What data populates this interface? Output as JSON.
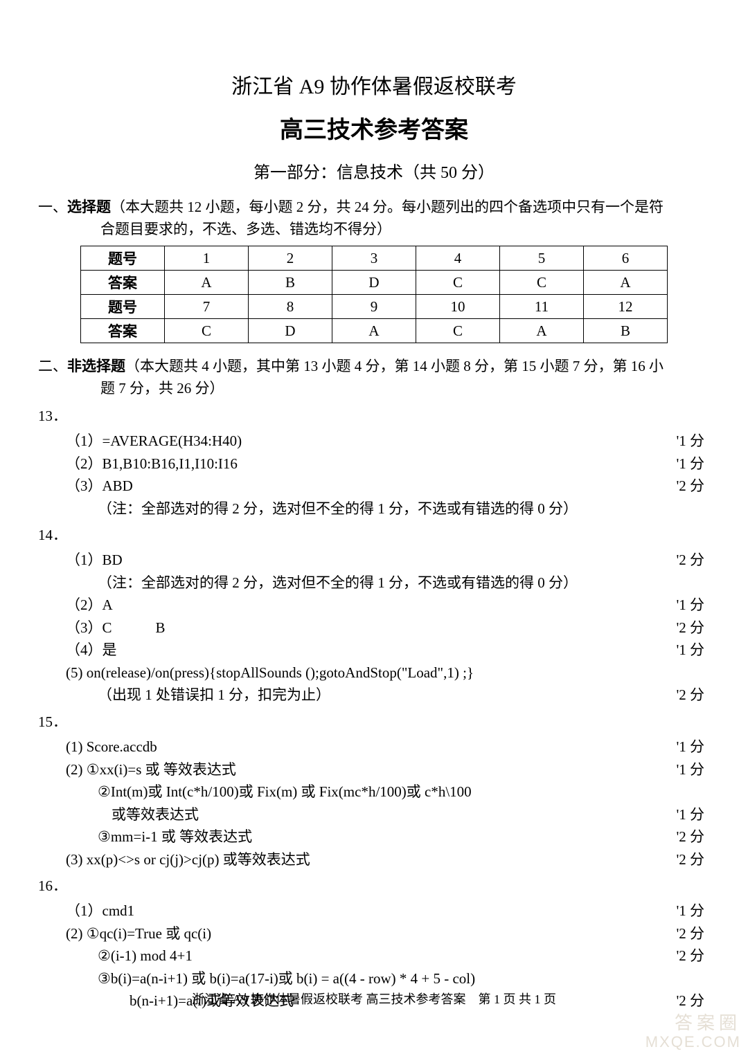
{
  "title_main": "浙江省 A9 协作体暑假返校联考",
  "title_sub": "高三技术参考答案",
  "section_header": "第一部分：信息技术（共 50 分）",
  "instructions1": {
    "prefix": "一、",
    "label": "选择题",
    "text": "（本大题共 12 小题，每小题 2 分，共 24 分。每小题列出的四个备选项中只有一个是符",
    "cont": "合题目要求的，不选、多选、错选均不得分）"
  },
  "answer_table": {
    "row1_label": "题号",
    "row1_cells": [
      "1",
      "2",
      "3",
      "4",
      "5",
      "6"
    ],
    "row2_label": "答案",
    "row2_cells": [
      "A",
      "B",
      "D",
      "C",
      "C",
      "A"
    ],
    "row3_label": "题号",
    "row3_cells": [
      "7",
      "8",
      "9",
      "10",
      "11",
      "12"
    ],
    "row4_label": "答案",
    "row4_cells": [
      "C",
      "D",
      "A",
      "C",
      "A",
      "B"
    ]
  },
  "instructions2": {
    "prefix": "二、",
    "label": "非选择题",
    "text": "（本大题共 4 小题，其中第 13 小题 4 分，第 14 小题 8 分，第 15 小题 7 分，第 16 小",
    "cont": "题 7 分，共 26 分）"
  },
  "q13": {
    "num": "13．",
    "a1": "（1）=AVERAGE(H34:H40)",
    "a1_score": "'1 分",
    "a2": "（2）B1,B10:B16,I1,I10:I16",
    "a2_score": "'1 分",
    "a3": "（3）ABD",
    "a3_score": "'2 分",
    "a3_note": "（注：全部选对的得 2 分，选对但不全的得 1 分，不选或有错选的得 0 分）"
  },
  "q14": {
    "num": "14．",
    "a1": "（1）BD",
    "a1_score": "'2 分",
    "a1_note": "（注：全部选对的得 2 分，选对但不全的得 1 分，不选或有错选的得 0 分）",
    "a2": "（2）A",
    "a2_score": "'1 分",
    "a3": "（3）C　　　B",
    "a3_score": "'2 分",
    "a4": "（4）是",
    "a4_score": "'1 分",
    "a5": "(5) on(release)/on(press){stopAllSounds ();gotoAndStop(\"Load\",1) ;}",
    "a5_note": "（出现 1 处错误扣 1 分，扣完为止）",
    "a5_score": "'2 分"
  },
  "q15": {
    "num": "15．",
    "a1": "(1) Score.accdb",
    "a1_score": "'1 分",
    "a2": "(2) ①xx(i)=s 或 等效表达式",
    "a2_score": "'1 分",
    "a2b": "②Int(m)或 Int(c*h/100)或 Fix(m) 或 Fix(mc*h/100)或 c*h\\100",
    "a2b_cont": "或等效表达式",
    "a2b_score": "'1 分",
    "a2c": "③mm=i-1 或 等效表达式",
    "a2c_score": "'2 分",
    "a3": "(3) xx(p)<>s or cj(j)>cj(p) 或等效表达式",
    "a3_score": "'2 分"
  },
  "q16": {
    "num": "16．",
    "a1": "（1）cmd1",
    "a1_score": "'1 分",
    "a2": "(2) ①qc(i)=True 或 qc(i)",
    "a2_score": "'2 分",
    "a2b": "②(i-1) mod 4+1",
    "a2b_score": "'2 分",
    "a2c": "③b(i)=a(n-i+1) 或 b(i)=a(17-i)或 b(i) = a((4 - row) * 4 + 5 - col)",
    "a2c_cont": "b(n-i+1)=a(i)或等效表达式",
    "a2c_score": "'2 分"
  },
  "footer": "浙江省 A9 协作体暑假返校联考 高三技术参考答案　第 1 页 共 1 页",
  "watermark_top": "答案圈",
  "watermark_bottom": "MXQE.COM"
}
